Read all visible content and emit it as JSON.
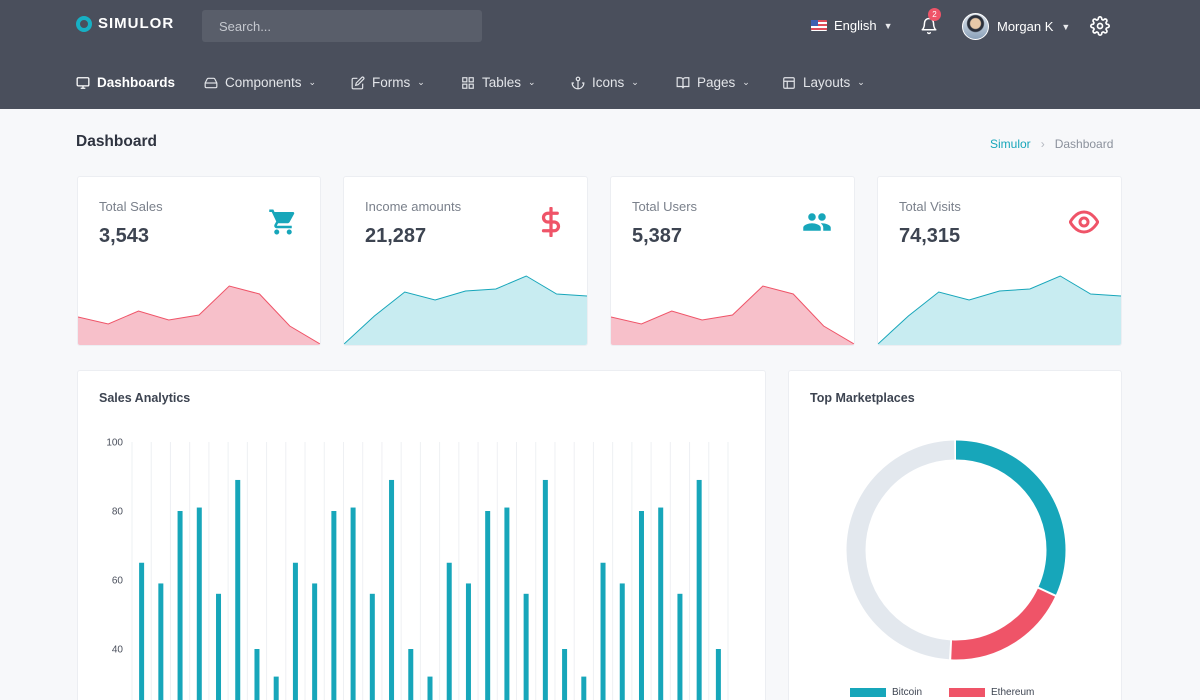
{
  "app": {
    "name": "SIMULOR"
  },
  "search": {
    "placeholder": "Search..."
  },
  "header": {
    "language": "English",
    "notifications_count": "2",
    "user_name": "Morgan K"
  },
  "menu": [
    {
      "label": "Dashboards",
      "icon": "monitor-icon",
      "active": true
    },
    {
      "label": "Components",
      "icon": "drive-icon"
    },
    {
      "label": "Forms",
      "icon": "edit-icon"
    },
    {
      "label": "Tables",
      "icon": "grid-icon"
    },
    {
      "label": "Icons",
      "icon": "anchor-icon"
    },
    {
      "label": "Pages",
      "icon": "book-icon"
    },
    {
      "label": "Layouts",
      "icon": "layout-icon"
    }
  ],
  "page": {
    "title": "Dashboard"
  },
  "breadcrumb": {
    "root": "Simulor",
    "current": "Dashboard"
  },
  "stats": [
    {
      "label": "Total Sales",
      "value": "3,543",
      "icon": "shopping-cart-icon",
      "color": "#17a6ba",
      "spark_color": "pink",
      "spark": [
        27,
        20,
        33,
        24,
        29,
        58,
        50,
        18,
        0
      ]
    },
    {
      "label": "Income amounts",
      "value": "21,287",
      "icon": "dollar-icon",
      "color": "#ef5468",
      "spark_color": "teal",
      "spark": [
        0,
        28,
        52,
        44,
        53,
        55,
        68,
        50,
        48
      ]
    },
    {
      "label": "Total Users",
      "value": "5,387",
      "icon": "users-icon",
      "color": "#17a6ba",
      "spark_color": "pink",
      "spark": [
        27,
        20,
        33,
        24,
        29,
        58,
        50,
        18,
        0
      ]
    },
    {
      "label": "Total Visits",
      "value": "74,315",
      "icon": "eye-icon",
      "color": "#ef5468",
      "spark_color": "teal",
      "spark": [
        0,
        28,
        52,
        44,
        53,
        55,
        68,
        50,
        48
      ]
    }
  ],
  "colors": {
    "teal": "#17a6ba",
    "pink": "#ef5468",
    "pink_fill": "#f7c0ca",
    "teal_fill": "#c8ecf1",
    "donut_rest": "#e3e8ee"
  },
  "sales_analytics": {
    "title": "Sales Analytics",
    "chart_data": {
      "type": "bar",
      "ylim": [
        0,
        100
      ],
      "y_ticks": [
        40,
        60,
        80,
        100
      ],
      "grid": true,
      "values": [
        65,
        59,
        80,
        81,
        56,
        89,
        40,
        32,
        65,
        59,
        80,
        81,
        56,
        89,
        40,
        32,
        65,
        59,
        80,
        81,
        56,
        89,
        40,
        32,
        65,
        59,
        80,
        81,
        56,
        89,
        40
      ]
    }
  },
  "top_marketplaces": {
    "title": "Top Marketplaces",
    "chart_data": {
      "type": "pie",
      "series": [
        {
          "name": "Bitcoin",
          "value": 32,
          "color": "#17a6ba"
        },
        {
          "name": "Ethereum",
          "value": 19,
          "color": "#ef5468"
        },
        {
          "value": 49,
          "color": "#e3e8ee"
        }
      ]
    }
  }
}
